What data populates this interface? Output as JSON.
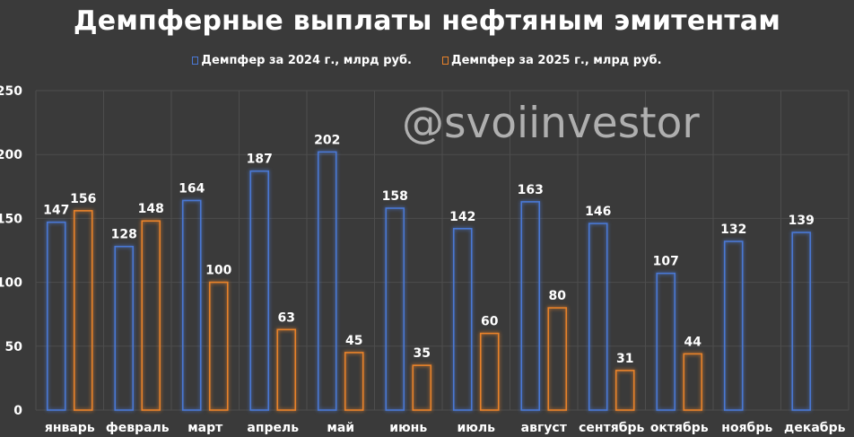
{
  "chart_data": {
    "type": "bar",
    "title": "Демпферные выплаты нефтяным эмитентам",
    "watermark": "@svoiinvestor",
    "categories": [
      "январь",
      "февраль",
      "март",
      "апрель",
      "май",
      "июнь",
      "июль",
      "август",
      "сентябрь",
      "октябрь",
      "ноябрь",
      "декабрь"
    ],
    "series": [
      {
        "name": "Демпфер за 2024 г., млрд руб.",
        "color": "#4a78d4",
        "values": [
          147,
          128,
          164,
          187,
          202,
          158,
          142,
          163,
          146,
          107,
          132,
          139
        ]
      },
      {
        "name": "Демпфер за 2025 г., млрд руб.",
        "color": "#e8822a",
        "values": [
          156,
          148,
          100,
          63,
          45,
          35,
          60,
          80,
          31,
          44,
          null,
          null
        ]
      }
    ],
    "ylim": [
      0,
      250
    ],
    "yticks": [
      0,
      50,
      100,
      150,
      200,
      250
    ],
    "grid": true,
    "legend_position": "top"
  }
}
